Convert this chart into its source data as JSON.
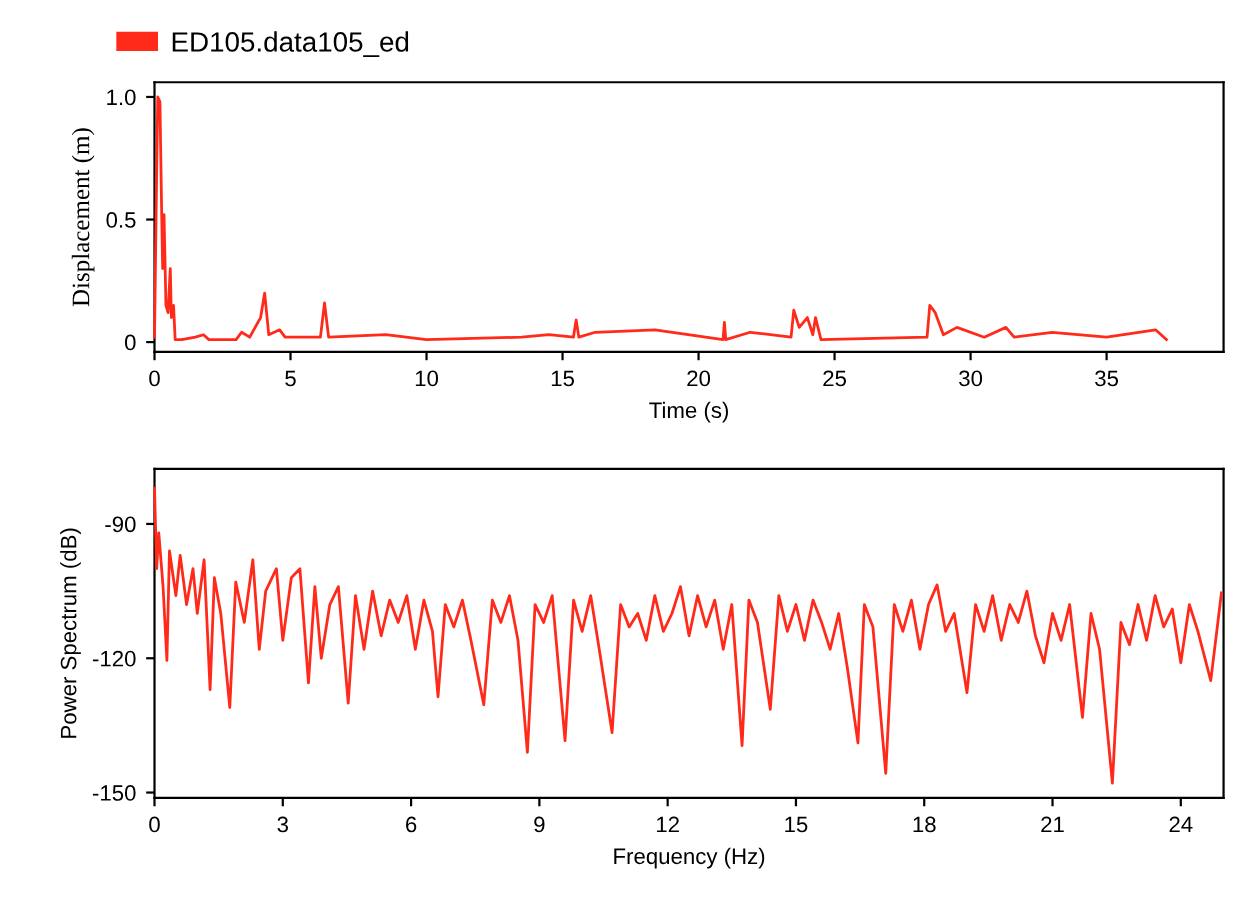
{
  "chart_data": [
    {
      "type": "line",
      "xlabel": "Time (s)",
      "ylabel": "Displacement (m)",
      "xlim": [
        0,
        39.3
      ],
      "ylim": [
        -0.04,
        1.06
      ],
      "xticks": [
        0,
        5,
        10,
        15,
        20,
        25,
        30,
        35
      ],
      "yticks": [
        0,
        0.5,
        {
          "value": 1.0,
          "label": "1.0"
        }
      ],
      "legend": "top left",
      "grid": false,
      "marker": "none",
      "line_style": "solid",
      "series": [
        {
          "name": "ED105.data105_ed",
          "color": "#ff2a1a",
          "x": [
            0,
            0.08,
            0.12,
            0.2,
            0.26,
            0.3,
            0.35,
            0.42,
            0.5,
            0.58,
            0.62,
            0.7,
            0.76,
            1.0,
            1.5,
            1.8,
            2.0,
            3.0,
            3.2,
            3.5,
            3.9,
            4.05,
            4.2,
            4.6,
            4.8,
            6.1,
            6.25,
            6.4,
            8.5,
            10,
            13.5,
            14.5,
            15.4,
            15.5,
            15.6,
            16.2,
            18.4,
            20.9,
            20.95,
            21.0,
            21.9,
            23.4,
            23.5,
            23.7,
            24.0,
            24.2,
            24.3,
            24.5,
            28.4,
            28.5,
            28.7,
            29.0,
            29.5,
            30.5,
            31.3,
            31.6,
            33.0,
            35.0,
            36.8,
            37.2
          ],
          "values": [
            0.02,
            0.7,
            1.0,
            0.98,
            0.55,
            0.3,
            0.52,
            0.15,
            0.12,
            0.3,
            0.1,
            0.15,
            0.01,
            0.01,
            0.02,
            0.03,
            0.01,
            0.01,
            0.04,
            0.02,
            0.1,
            0.2,
            0.03,
            0.05,
            0.02,
            0.02,
            0.16,
            0.02,
            0.03,
            0.01,
            0.02,
            0.03,
            0.02,
            0.09,
            0.02,
            0.04,
            0.05,
            0.01,
            0.08,
            0.01,
            0.04,
            0.02,
            0.13,
            0.06,
            0.1,
            0.03,
            0.1,
            0.01,
            0.02,
            0.15,
            0.12,
            0.03,
            0.06,
            0.02,
            0.06,
            0.02,
            0.04,
            0.02,
            0.05,
            0.01
          ]
        }
      ]
    },
    {
      "type": "line",
      "xlabel": "Frequency (Hz)",
      "ylabel": "Power Spectrum (dB)",
      "xlim": [
        0,
        25
      ],
      "ylim": [
        -151.2,
        -77.7
      ],
      "xticks": [
        0,
        3,
        6,
        9,
        12,
        15,
        18,
        21,
        24
      ],
      "yticks": [
        -150,
        -120,
        -90
      ],
      "grid": false,
      "marker": "none",
      "line_style": "solid",
      "series": [
        {
          "color": "#ff2a1a",
          "x": [
            0,
            0.05,
            0.1,
            0.2,
            0.29,
            0.35,
            0.5,
            0.6,
            0.75,
            0.9,
            1.0,
            1.16,
            1.3,
            1.4,
            1.55,
            1.76,
            1.9,
            2.1,
            2.3,
            2.45,
            2.6,
            2.85,
            3.0,
            3.2,
            3.4,
            3.6,
            3.75,
            3.9,
            4.1,
            4.3,
            4.53,
            4.7,
            4.9,
            5.1,
            5.3,
            5.5,
            5.7,
            5.9,
            6.1,
            6.3,
            6.5,
            6.63,
            6.8,
            7.0,
            7.2,
            7.4,
            7.7,
            7.9,
            8.1,
            8.3,
            8.5,
            8.72,
            8.9,
            9.1,
            9.3,
            9.6,
            9.8,
            10.0,
            10.2,
            10.4,
            10.7,
            10.9,
            11.1,
            11.3,
            11.5,
            11.7,
            11.9,
            12.1,
            12.3,
            12.5,
            12.7,
            12.9,
            13.1,
            13.3,
            13.5,
            13.74,
            13.9,
            14.1,
            14.4,
            14.6,
            14.8,
            15.0,
            15.2,
            15.4,
            15.6,
            15.8,
            16.0,
            16.2,
            16.45,
            16.6,
            16.8,
            17.1,
            17.3,
            17.5,
            17.7,
            17.9,
            18.1,
            18.3,
            18.5,
            18.7,
            19.0,
            19.2,
            19.4,
            19.6,
            19.8,
            20.0,
            20.2,
            20.4,
            20.6,
            20.8,
            21.0,
            21.2,
            21.4,
            21.7,
            21.9,
            22.1,
            22.4,
            22.6,
            22.8,
            23.0,
            23.2,
            23.4,
            23.6,
            23.8,
            24.0,
            24.2,
            24.4,
            24.7,
            24.95
          ],
          "values": [
            -82,
            -100,
            -92,
            -104,
            -120.5,
            -96,
            -106,
            -97,
            -108,
            -100,
            -110,
            -98,
            -127,
            -102,
            -110,
            -131,
            -103,
            -112,
            -98,
            -118,
            -105,
            -100,
            -116,
            -102,
            -100,
            -125.5,
            -104,
            -120,
            -108,
            -104,
            -130,
            -106,
            -118,
            -105,
            -115,
            -107,
            -112,
            -106,
            -118,
            -107,
            -114,
            -128.6,
            -108,
            -113,
            -107,
            -116,
            -130.4,
            -107,
            -112,
            -106,
            -116,
            -141,
            -108,
            -112,
            -106,
            -138.4,
            -107,
            -114,
            -106,
            -118,
            -136.6,
            -108,
            -113,
            -110,
            -116,
            -106,
            -114,
            -110,
            -104,
            -115,
            -106,
            -113,
            -107,
            -118,
            -108,
            -139.5,
            -107,
            -112,
            -131.4,
            -106,
            -114,
            -108,
            -116,
            -107,
            -112,
            -118,
            -110,
            -122,
            -138.9,
            -108,
            -113,
            -145.7,
            -108,
            -114,
            -107,
            -118,
            -108,
            -103.6,
            -114,
            -110,
            -127.7,
            -108,
            -114,
            -106,
            -116,
            -108,
            -112,
            -105,
            -115,
            -121,
            -110,
            -116,
            -108,
            -133.2,
            -110,
            -118,
            -147.9,
            -112,
            -117,
            -108,
            -116,
            -106,
            -113,
            -109,
            -121,
            -108,
            -114,
            -125,
            -105.4
          ]
        }
      ]
    }
  ]
}
